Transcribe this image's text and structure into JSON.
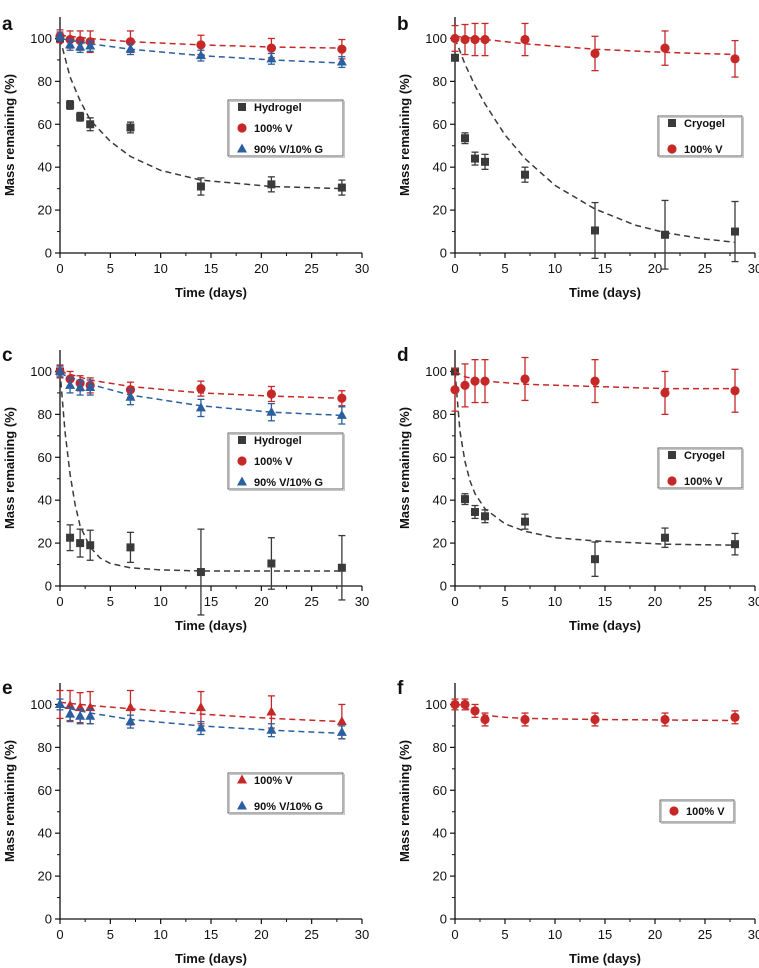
{
  "colors": {
    "hydrogel": "#3a3a3a",
    "cryogel": "#3a3a3a",
    "v100": "#c62828",
    "v90g10": "#2a5fa0",
    "axis": "#111111"
  },
  "chart_data": [
    {
      "panel": "a",
      "type": "scatter",
      "xlabel": "Time (days)",
      "ylabel": "Mass remaining (%)",
      "xlim": [
        0,
        30
      ],
      "ylim": [
        0,
        110
      ],
      "xticks": [
        0,
        5,
        10,
        15,
        20,
        25,
        30
      ],
      "yticks": [
        0,
        20,
        40,
        60,
        80,
        100
      ],
      "legend_position": "middle-right",
      "series": [
        {
          "name": "Hydrogel",
          "marker": "square",
          "color": "#3a3a3a",
          "x": [
            0,
            1,
            2,
            3,
            7,
            14,
            21,
            28
          ],
          "y": [
            100,
            69,
            63.5,
            60,
            58.5,
            31,
            32,
            30.5
          ],
          "err": [
            0,
            2,
            2,
            3,
            2.5,
            4,
            3.5,
            3.5
          ],
          "fit": [
            [
              0,
              100
            ],
            [
              1,
              82
            ],
            [
              2,
              71
            ],
            [
              3,
              62
            ],
            [
              5,
              52
            ],
            [
              7,
              45
            ],
            [
              10,
              38.5
            ],
            [
              14,
              34
            ],
            [
              21,
              31
            ],
            [
              28,
              30
            ]
          ]
        },
        {
          "name": "100% V",
          "marker": "circle",
          "color": "#c62828",
          "x": [
            0,
            1,
            2,
            3,
            7,
            14,
            21,
            28
          ],
          "y": [
            101,
            99.5,
            99,
            98.5,
            98.5,
            97,
            95.5,
            95
          ],
          "err": [
            3,
            4,
            4.5,
            5,
            5,
            4.5,
            4.5,
            4.5
          ],
          "fit": [
            [
              0,
              101.5
            ],
            [
              3,
              100
            ],
            [
              7,
              98.5
            ],
            [
              14,
              97
            ],
            [
              21,
              96
            ],
            [
              28,
              95.5
            ]
          ]
        },
        {
          "name": "90% V/10% G",
          "marker": "triangle",
          "color": "#2a5fa0",
          "x": [
            0,
            1,
            2,
            3,
            7,
            14,
            21,
            28
          ],
          "y": [
            101,
            97,
            96,
            96.5,
            95,
            92,
            90.5,
            89
          ],
          "err": [
            2,
            2.5,
            2.5,
            2.5,
            2.5,
            2.5,
            2.5,
            2.5
          ],
          "fit": [
            [
              0,
              100
            ],
            [
              3,
              97.5
            ],
            [
              7,
              95
            ],
            [
              14,
              92
            ],
            [
              21,
              90
            ],
            [
              28,
              88.5
            ]
          ]
        }
      ]
    },
    {
      "panel": "b",
      "type": "scatter",
      "xlabel": "Time (days)",
      "ylabel": "Mass remaining (%)",
      "xlim": [
        0,
        30
      ],
      "ylim": [
        0,
        110
      ],
      "xticks": [
        0,
        5,
        10,
        15,
        20,
        25,
        30
      ],
      "yticks": [
        0,
        20,
        40,
        60,
        80,
        100
      ],
      "legend_position": "middle-right",
      "series": [
        {
          "name": "Cryogel",
          "marker": "square",
          "color": "#3a3a3a",
          "x": [
            0,
            1,
            2,
            3,
            7,
            14,
            21,
            28
          ],
          "y": [
            91,
            53.5,
            44,
            42.5,
            36.5,
            10.5,
            8.5,
            10
          ],
          "err": [
            0,
            2.5,
            3,
            3.5,
            3.5,
            13,
            16,
            14
          ],
          "fit": [
            [
              0,
              100
            ],
            [
              1,
              88
            ],
            [
              2,
              78
            ],
            [
              3,
              69.5
            ],
            [
              5,
              55
            ],
            [
              7,
              44
            ],
            [
              10,
              31.5
            ],
            [
              14,
              20.5
            ],
            [
              18,
              13
            ],
            [
              21,
              9.5
            ],
            [
              25,
              6.5
            ],
            [
              28,
              5
            ]
          ]
        },
        {
          "name": "100% V",
          "marker": "circle",
          "color": "#c62828",
          "x": [
            0,
            1,
            2,
            3,
            7,
            14,
            21,
            28
          ],
          "y": [
            100,
            99.5,
            99.5,
            99.5,
            99.5,
            93,
            95.5,
            90.5
          ],
          "err": [
            6,
            7,
            7.5,
            7.5,
            7.5,
            8,
            8,
            8.5
          ],
          "fit": [
            [
              0,
              101
            ],
            [
              3,
              99.5
            ],
            [
              7,
              97.5
            ],
            [
              14,
              95
            ],
            [
              21,
              93.5
            ],
            [
              28,
              92.5
            ]
          ]
        }
      ]
    },
    {
      "panel": "c",
      "type": "scatter",
      "xlabel": "Time (days)",
      "ylabel": "Mass remaining (%)",
      "xlim": [
        0,
        30
      ],
      "ylim": [
        0,
        110
      ],
      "xticks": [
        0,
        5,
        10,
        15,
        20,
        25,
        30
      ],
      "yticks": [
        0,
        20,
        40,
        60,
        80,
        100
      ],
      "legend_position": "middle-right",
      "series": [
        {
          "name": "Hydrogel",
          "marker": "square",
          "color": "#3a3a3a",
          "x": [
            0,
            1,
            2,
            3,
            7,
            14,
            21,
            28
          ],
          "y": [
            100,
            22.5,
            20,
            19,
            18,
            6.5,
            10.5,
            8.5
          ],
          "err": [
            0,
            6,
            6.5,
            7,
            7,
            20,
            12,
            15
          ],
          "fit": [
            [
              0,
              100
            ],
            [
              0.5,
              72
            ],
            [
              1,
              52
            ],
            [
              1.5,
              38
            ],
            [
              2,
              28
            ],
            [
              3,
              18
            ],
            [
              4,
              13
            ],
            [
              5,
              10.5
            ],
            [
              7,
              8.5
            ],
            [
              10,
              7.5
            ],
            [
              14,
              7
            ],
            [
              28,
              7
            ]
          ]
        },
        {
          "name": "100% V",
          "marker": "circle",
          "color": "#c62828",
          "x": [
            0,
            1,
            2,
            3,
            7,
            14,
            21,
            28
          ],
          "y": [
            100,
            96.5,
            94.5,
            93.5,
            91.5,
            92,
            89.5,
            87.5
          ],
          "err": [
            3,
            3.5,
            3.5,
            3.5,
            3.5,
            3.5,
            3.5,
            3.5
          ],
          "fit": [
            [
              0,
              100
            ],
            [
              3,
              96
            ],
            [
              7,
              93
            ],
            [
              14,
              90
            ],
            [
              21,
              88.5
            ],
            [
              28,
              87.5
            ]
          ]
        },
        {
          "name": "90% V/10% G",
          "marker": "triangle",
          "color": "#2a5fa0",
          "x": [
            0,
            1,
            2,
            3,
            7,
            14,
            21,
            28
          ],
          "y": [
            100,
            93.5,
            92.5,
            92.5,
            88,
            83,
            81,
            79.5
          ],
          "err": [
            2.5,
            3.5,
            3.5,
            3.5,
            3.5,
            4,
            4,
            4
          ],
          "fit": [
            [
              0,
              99
            ],
            [
              3,
              94
            ],
            [
              7,
              89
            ],
            [
              14,
              84
            ],
            [
              21,
              81
            ],
            [
              28,
              79.5
            ]
          ]
        }
      ]
    },
    {
      "panel": "d",
      "type": "scatter",
      "xlabel": "Time (days)",
      "ylabel": "Mass remaining (%)",
      "xlim": [
        0,
        30
      ],
      "ylim": [
        0,
        110
      ],
      "xticks": [
        0,
        5,
        10,
        15,
        20,
        25,
        30
      ],
      "yticks": [
        0,
        20,
        40,
        60,
        80,
        100
      ],
      "legend_position": "middle-right",
      "series": [
        {
          "name": "Cryogel",
          "marker": "square",
          "color": "#3a3a3a",
          "x": [
            0,
            1,
            2,
            3,
            7,
            14,
            21,
            28
          ],
          "y": [
            100,
            40.5,
            34.5,
            32.5,
            30,
            12.5,
            22.5,
            19.5
          ],
          "err": [
            0,
            2.5,
            3,
            3,
            3.5,
            8,
            4.5,
            5
          ],
          "fit": [
            [
              0,
              100
            ],
            [
              0.5,
              72
            ],
            [
              1,
              58
            ],
            [
              1.5,
              49
            ],
            [
              2,
              43
            ],
            [
              3,
              36
            ],
            [
              5,
              29
            ],
            [
              7,
              25.5
            ],
            [
              10,
              22.5
            ],
            [
              14,
              21
            ],
            [
              21,
              19.5
            ],
            [
              28,
              19
            ]
          ]
        },
        {
          "name": "100% V",
          "marker": "circle",
          "color": "#c62828",
          "x": [
            0,
            1,
            2,
            3,
            7,
            14,
            21,
            28
          ],
          "y": [
            91.5,
            93.5,
            95.5,
            95.5,
            96.5,
            95.5,
            90,
            91
          ],
          "err": [
            10,
            10,
            10,
            10,
            10,
            10,
            10,
            10
          ],
          "fit": [
            [
              0,
              100
            ],
            [
              1,
              97.5
            ],
            [
              3,
              95.5
            ],
            [
              7,
              94
            ],
            [
              14,
              93
            ],
            [
              21,
              92
            ],
            [
              28,
              92
            ]
          ]
        }
      ]
    },
    {
      "panel": "e",
      "type": "scatter",
      "xlabel": "Time (days)",
      "ylabel": "Mass remaining (%)",
      "xlim": [
        0,
        30
      ],
      "ylim": [
        0,
        110
      ],
      "xticks": [
        0,
        5,
        10,
        15,
        20,
        25,
        30
      ],
      "yticks": [
        0,
        20,
        40,
        60,
        80,
        100
      ],
      "legend_position": "lower-right",
      "series": [
        {
          "name": "100% V",
          "marker": "triangle",
          "color": "#c62828",
          "x": [
            0,
            1,
            2,
            3,
            7,
            14,
            21,
            28
          ],
          "y": [
            100,
            99.5,
            98.5,
            98.5,
            98.5,
            98.5,
            96.5,
            92
          ],
          "err": [
            6.5,
            7,
            7,
            7.5,
            8,
            7.5,
            7.5,
            8
          ],
          "fit": [
            [
              0,
              101
            ],
            [
              3,
              99.5
            ],
            [
              7,
              98
            ],
            [
              14,
              95.5
            ],
            [
              21,
              93.5
            ],
            [
              28,
              92
            ]
          ]
        },
        {
          "name": "90% V/10% G",
          "marker": "triangle",
          "color": "#2a5fa0",
          "x": [
            0,
            1,
            2,
            3,
            7,
            14,
            21,
            28
          ],
          "y": [
            100,
            95.5,
            94.5,
            94.5,
            92,
            89,
            88,
            87
          ],
          "err": [
            2.5,
            3.5,
            3.5,
            3.5,
            3,
            3,
            3,
            3
          ],
          "fit": [
            [
              0,
              99
            ],
            [
              3,
              96
            ],
            [
              7,
              93
            ],
            [
              14,
              90
            ],
            [
              21,
              88
            ],
            [
              28,
              86.5
            ]
          ]
        }
      ]
    },
    {
      "panel": "f",
      "type": "scatter",
      "xlabel": "Time (days)",
      "ylabel": "Mass remaining (%)",
      "xlim": [
        0,
        30
      ],
      "ylim": [
        0,
        110
      ],
      "xticks": [
        0,
        5,
        10,
        15,
        20,
        25,
        30
      ],
      "yticks": [
        0,
        20,
        40,
        60,
        80,
        100
      ],
      "legend_position": "lower-right",
      "series": [
        {
          "name": "100% V",
          "marker": "circle",
          "color": "#c62828",
          "x": [
            0,
            1,
            2,
            3,
            7,
            14,
            21,
            28
          ],
          "y": [
            100,
            100,
            97,
            93,
            93,
            93,
            93,
            94
          ],
          "err": [
            2.5,
            2.5,
            3,
            3,
            3,
            3,
            3,
            3
          ],
          "fit": [
            [
              0,
              101
            ],
            [
              1,
              98.5
            ],
            [
              2,
              96.5
            ],
            [
              3,
              95
            ],
            [
              5,
              94
            ],
            [
              7,
              93.5
            ],
            [
              14,
              93
            ],
            [
              28,
              92.5
            ]
          ]
        }
      ]
    }
  ]
}
